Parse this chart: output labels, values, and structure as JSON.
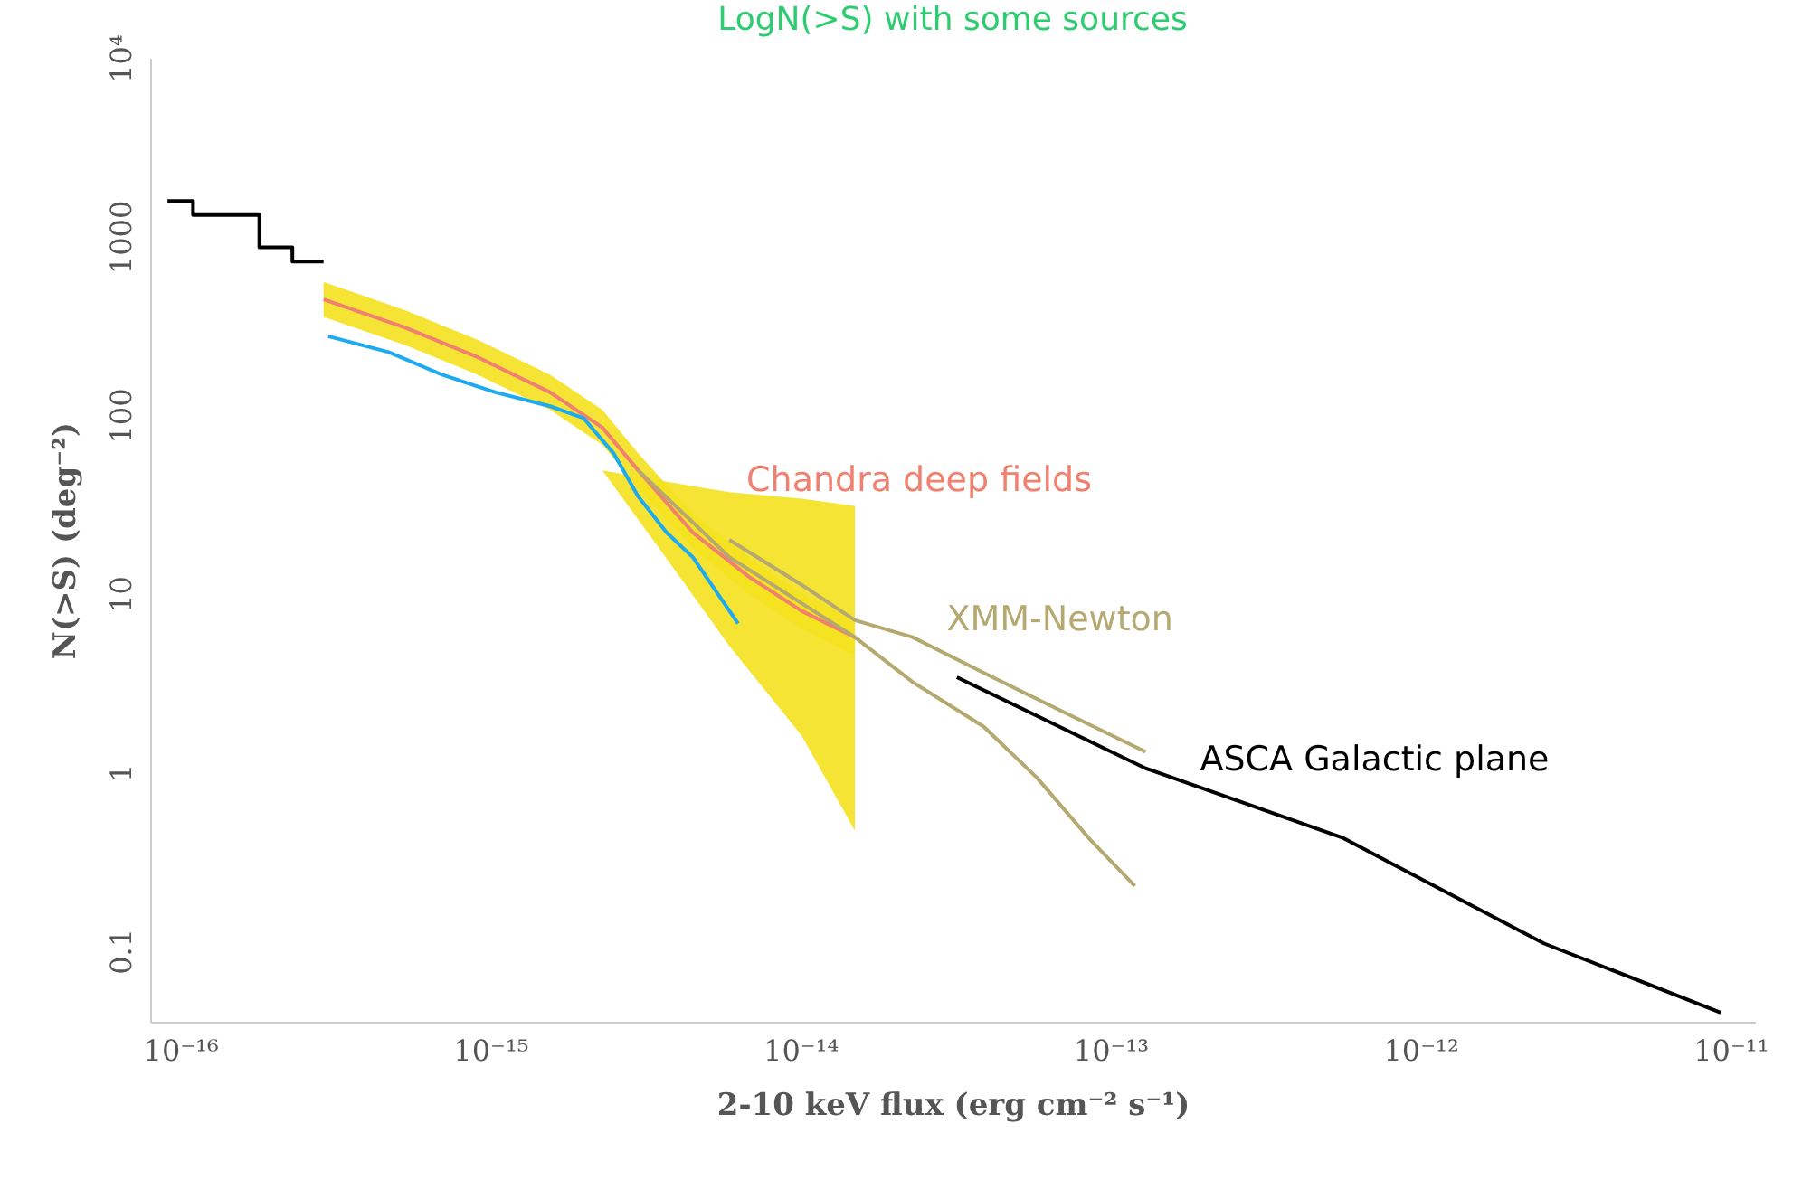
{
  "chart_data": {
    "type": "line",
    "title": "LogN(>S) with some sources",
    "xlabel": "2-10 keV flux (erg cm⁻² s⁻¹)",
    "ylabel": "N(>S) (deg⁻²)",
    "log": "xy",
    "xlim": [
      8e-17,
      1.2e-11
    ],
    "xticks": [
      {
        "value": 1e-16,
        "label": "10⁻¹⁶"
      },
      {
        "value": 1e-15,
        "label": "10⁻¹⁵"
      },
      {
        "value": 1e-14,
        "label": "10⁻¹⁴"
      },
      {
        "value": 1e-13,
        "label": "10⁻¹³"
      },
      {
        "value": 1e-12,
        "label": "10⁻¹²"
      },
      {
        "value": 1e-11,
        "label": "10⁻¹¹"
      }
    ],
    "ylim": [
      0.04,
      10000
    ],
    "yticks": [
      0.1,
      1,
      10,
      100,
      1000,
      {
        "value": 10000,
        "label": "10⁴"
      }
    ],
    "grid": false,
    "series": [
      {
        "type": "area",
        "color": "#f5e11e",
        "x": [
          2.3e-15,
          3.5e-15,
          5.9e-15,
          1.01e-14,
          1.5e-14
        ],
        "values": [
          null,
          null,
          null,
          null,
          null
        ],
        "upper": [
          49,
          43,
          37,
          34,
          31
        ],
        "lower": [
          49,
          18,
          5.1,
          1.6,
          0.47
        ]
      },
      {
        "name": "Chandra deep fields",
        "color": "#f08070",
        "x": [
          2.9e-16,
          5.3e-16,
          9.1e-16,
          1.56e-15,
          2.3e-15,
          3e-15,
          4.5e-15,
          6.8e-15,
          1.01e-14,
          1.5e-14
        ],
        "values": [
          444,
          309,
          211,
          134,
          85,
          49,
          22,
          12.5,
          8.0,
          5.7
        ],
        "upper": [
          556,
          387,
          264,
          168,
          107,
          61,
          28,
          16,
          10,
          7.1
        ],
        "lower": [
          354,
          247,
          168,
          107,
          68,
          39,
          18,
          10,
          6.4,
          4.5
        ]
      },
      {
        "color": "#1eaaf0",
        "x": [
          3e-16,
          4.7e-16,
          7e-16,
          1.04e-15,
          1.56e-15,
          2e-15,
          2.5e-15,
          3e-15,
          3.7e-15,
          4.5e-15,
          6.3e-15
        ],
        "values": [
          276,
          225,
          168,
          134,
          112,
          96,
          61,
          35,
          22,
          16,
          6.8
        ]
      },
      {
        "name": "XMM-Newton",
        "color": "#b5a870",
        "x": [
          5.9e-15,
          1.01e-14,
          1.5e-14,
          2.3e-14,
          3.9e-14,
          6.6e-14,
          1.3e-13
        ],
        "values": [
          20,
          11.2,
          7.1,
          5.7,
          3.6,
          2.3,
          1.3
        ]
      },
      {
        "color": "#b5a870",
        "x": [
          3e-15,
          5.9e-15,
          1.5e-14,
          2.3e-14,
          3.9e-14,
          5.8e-14,
          8.6e-14,
          1.2e-13
        ],
        "values": [
          49,
          16,
          5.7,
          3.2,
          1.8,
          0.93,
          0.42,
          0.23
        ]
      },
      {
        "name": "ASCA Galactic plane",
        "color": "#000000",
        "x": [
          3.2e-14,
          1.3e-13,
          5.6e-13,
          2.5e-12,
          9.3e-12
        ],
        "values": [
          3.4,
          1.05,
          0.43,
          0.11,
          0.045
        ]
      },
      {
        "type": "step",
        "color": "#000000",
        "x": [
          9.1e-17,
          1.1e-16,
          1.8e-16,
          2.3e-16,
          2.9e-16
        ],
        "values": [
          1580,
          1320,
          870,
          724,
          724
        ]
      }
    ]
  }
}
